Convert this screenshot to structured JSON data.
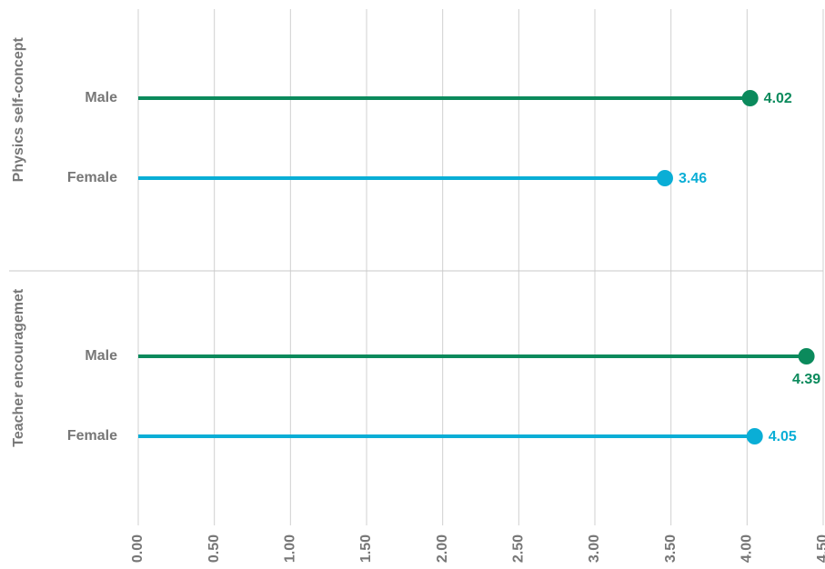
{
  "chart_data": {
    "type": "lollipop",
    "groups": [
      "Physics self-concept",
      "Teacher encouragemet"
    ],
    "series": [
      {
        "name": "Male",
        "color": "#0b8a5c",
        "values": [
          4.02,
          4.39
        ]
      },
      {
        "name": "Female",
        "color": "#0aaed6",
        "values": [
          3.46,
          4.05
        ]
      }
    ],
    "xlim": [
      0,
      4.5
    ],
    "xticks": [
      {
        "value": 0,
        "label": "0.00"
      },
      {
        "value": 0.5,
        "label": "0.50"
      },
      {
        "value": 1,
        "label": "1.00"
      },
      {
        "value": 1.5,
        "label": "1.50"
      },
      {
        "value": 2,
        "label": "2.00"
      },
      {
        "value": 2.5,
        "label": "2.50"
      },
      {
        "value": 3,
        "label": "3.00"
      },
      {
        "value": 3.5,
        "label": "3.50"
      },
      {
        "value": 4,
        "label": "4.00"
      },
      {
        "value": 4.5,
        "label": "4.50"
      }
    ],
    "grid": true
  }
}
